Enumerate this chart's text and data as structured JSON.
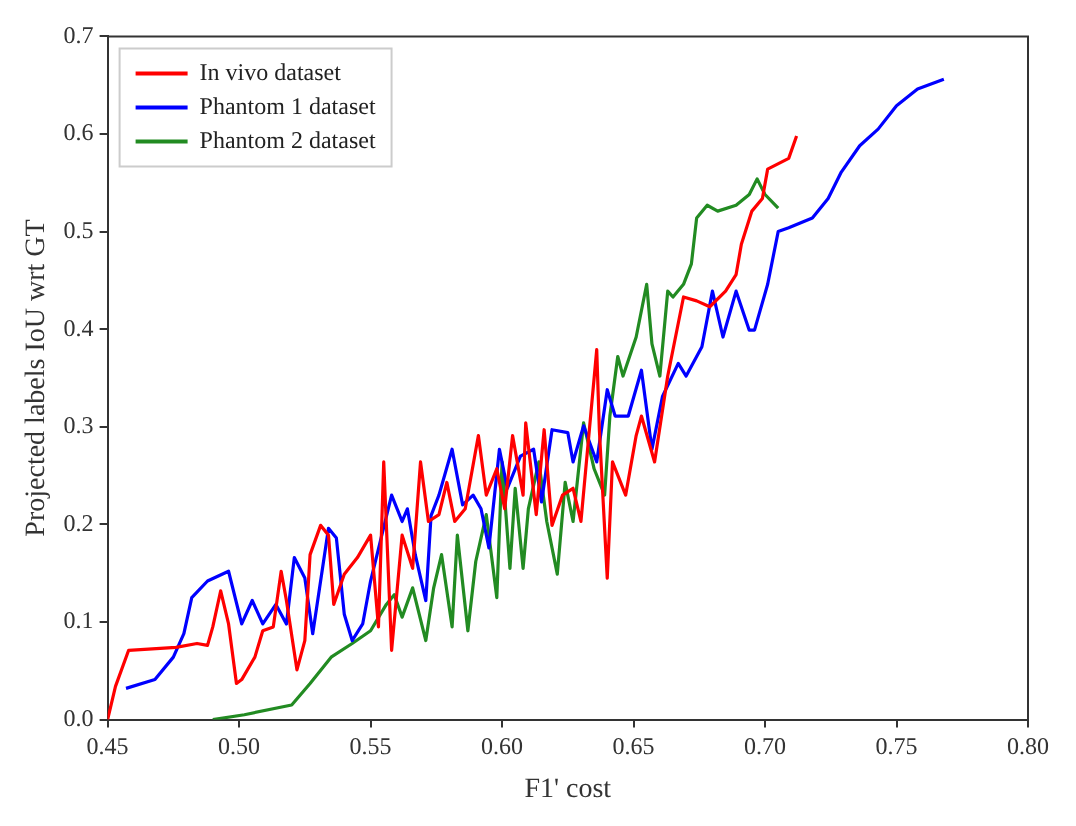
{
  "chart_data": {
    "type": "line",
    "xlabel": "F1' cost",
    "ylabel": "Projected labels IoU wrt GT",
    "xlim": [
      0.45,
      0.8
    ],
    "xticks": [
      {
        "value": 0.45,
        "label": "0.45"
      },
      {
        "value": 0.5,
        "label": "0.50"
      },
      {
        "value": 0.55,
        "label": "0.55"
      },
      {
        "value": 0.6,
        "label": "0.60"
      },
      {
        "value": 0.65,
        "label": "0.65"
      },
      {
        "value": 0.7,
        "label": "0.70"
      },
      {
        "value": 0.75,
        "label": "0.75"
      },
      {
        "value": 0.8,
        "label": "0.80"
      }
    ],
    "ylim": [
      0,
      0.7
    ],
    "yticks": [
      {
        "value": 0,
        "label": "0.0"
      },
      0.1,
      0.2,
      0.3,
      0.4,
      0.5,
      0.6,
      0.7
    ],
    "legend": "top left",
    "grid": false,
    "marker": "none",
    "line_style": "solid",
    "series": [
      {
        "name": "In vivo dataset",
        "color": "#ff0000",
        "x": [
          0.45,
          0.453,
          0.458,
          0.47,
          0.476,
          0.484,
          0.488,
          0.49,
          0.493,
          0.496,
          0.499,
          0.501,
          0.506,
          0.509,
          0.513,
          0.516,
          0.518,
          0.522,
          0.525,
          0.527,
          0.531,
          0.534,
          0.536,
          0.54,
          0.545,
          0.55,
          0.553,
          0.555,
          0.558,
          0.562,
          0.566,
          0.569,
          0.572,
          0.576,
          0.579,
          0.582,
          0.586,
          0.591,
          0.594,
          0.598,
          0.601,
          0.604,
          0.608,
          0.609,
          0.613,
          0.616,
          0.619,
          0.623,
          0.627,
          0.63,
          0.636,
          0.637,
          0.64,
          0.642,
          0.647,
          0.651,
          0.653,
          0.658,
          0.663,
          0.669,
          0.674,
          0.679,
          0.685,
          0.689,
          0.691,
          0.695,
          0.699,
          0.701,
          0.709,
          0.712
        ],
        "values": [
          0.0,
          0.034,
          0.071,
          0.073,
          0.074,
          0.078,
          0.076,
          0.095,
          0.132,
          0.098,
          0.037,
          0.041,
          0.064,
          0.091,
          0.095,
          0.152,
          0.122,
          0.051,
          0.081,
          0.169,
          0.199,
          0.189,
          0.118,
          0.149,
          0.166,
          0.189,
          0.095,
          0.264,
          0.071,
          0.189,
          0.155,
          0.264,
          0.203,
          0.21,
          0.243,
          0.203,
          0.216,
          0.291,
          0.23,
          0.257,
          0.216,
          0.291,
          0.23,
          0.304,
          0.21,
          0.297,
          0.199,
          0.23,
          0.237,
          0.203,
          0.379,
          0.297,
          0.145,
          0.264,
          0.23,
          0.291,
          0.311,
          0.264,
          0.352,
          0.433,
          0.429,
          0.423,
          0.439,
          0.456,
          0.487,
          0.521,
          0.534,
          0.564,
          0.575,
          0.598
        ]
      },
      {
        "name": "Phantom 1 dataset",
        "color": "#0000ff",
        "x": [
          0.457,
          0.468,
          0.475,
          0.479,
          0.482,
          0.488,
          0.496,
          0.501,
          0.505,
          0.509,
          0.514,
          0.518,
          0.521,
          0.525,
          0.528,
          0.534,
          0.537,
          0.54,
          0.543,
          0.547,
          0.55,
          0.554,
          0.558,
          0.562,
          0.564,
          0.567,
          0.571,
          0.573,
          0.576,
          0.581,
          0.585,
          0.589,
          0.592,
          0.595,
          0.599,
          0.602,
          0.607,
          0.612,
          0.615,
          0.619,
          0.625,
          0.627,
          0.631,
          0.636,
          0.64,
          0.643,
          0.648,
          0.653,
          0.657,
          0.661,
          0.667,
          0.67,
          0.676,
          0.68,
          0.684,
          0.689,
          0.694,
          0.696,
          0.701,
          0.705,
          0.709,
          0.718,
          0.724,
          0.729,
          0.736,
          0.743,
          0.75,
          0.758,
          0.768
        ],
        "values": [
          0.032,
          0.041,
          0.064,
          0.088,
          0.125,
          0.142,
          0.152,
          0.098,
          0.122,
          0.098,
          0.118,
          0.098,
          0.166,
          0.145,
          0.088,
          0.196,
          0.186,
          0.108,
          0.081,
          0.098,
          0.142,
          0.186,
          0.23,
          0.203,
          0.216,
          0.169,
          0.122,
          0.209,
          0.23,
          0.277,
          0.22,
          0.23,
          0.216,
          0.176,
          0.277,
          0.237,
          0.27,
          0.277,
          0.223,
          0.297,
          0.294,
          0.264,
          0.301,
          0.264,
          0.338,
          0.311,
          0.311,
          0.358,
          0.277,
          0.331,
          0.365,
          0.352,
          0.382,
          0.439,
          0.392,
          0.439,
          0.399,
          0.399,
          0.446,
          0.5,
          0.504,
          0.514,
          0.534,
          0.561,
          0.588,
          0.605,
          0.629,
          0.646,
          0.656
        ]
      },
      {
        "name": "Phantom 2 dataset",
        "color": "#228b22",
        "x": [
          0.49,
          0.502,
          0.52,
          0.527,
          0.535,
          0.543,
          0.55,
          0.556,
          0.559,
          0.562,
          0.566,
          0.571,
          0.574,
          0.577,
          0.581,
          0.583,
          0.587,
          0.59,
          0.594,
          0.598,
          0.6,
          0.603,
          0.605,
          0.608,
          0.61,
          0.614,
          0.617,
          0.621,
          0.624,
          0.627,
          0.631,
          0.635,
          0.639,
          0.641,
          0.644,
          0.646,
          0.651,
          0.655,
          0.657,
          0.66,
          0.663,
          0.665,
          0.669,
          0.672,
          0.674,
          0.678,
          0.682,
          0.689,
          0.694,
          0.697,
          0.7,
          0.705
        ],
        "values": [
          0.0,
          0.005,
          0.015,
          0.037,
          0.064,
          0.078,
          0.091,
          0.118,
          0.128,
          0.105,
          0.135,
          0.081,
          0.135,
          0.169,
          0.095,
          0.189,
          0.091,
          0.162,
          0.21,
          0.125,
          0.264,
          0.155,
          0.237,
          0.155,
          0.216,
          0.264,
          0.203,
          0.149,
          0.243,
          0.203,
          0.304,
          0.257,
          0.23,
          0.311,
          0.372,
          0.352,
          0.392,
          0.446,
          0.385,
          0.352,
          0.439,
          0.433,
          0.446,
          0.467,
          0.514,
          0.527,
          0.521,
          0.527,
          0.538,
          0.554,
          0.538,
          0.524
        ]
      }
    ]
  }
}
